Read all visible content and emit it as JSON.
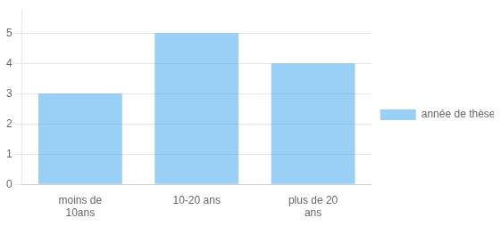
{
  "chart_data": {
    "type": "bar",
    "categories": [
      "moins de\n10ans",
      "10-20 ans",
      "plus de 20\nans"
    ],
    "series": [
      {
        "name": "année de thèse",
        "values": [
          3,
          5,
          4
        ]
      }
    ],
    "ylim": [
      0,
      5.8
    ],
    "yticks": [
      0,
      1,
      2,
      3,
      4,
      5
    ],
    "grid": true,
    "legend": "right"
  }
}
